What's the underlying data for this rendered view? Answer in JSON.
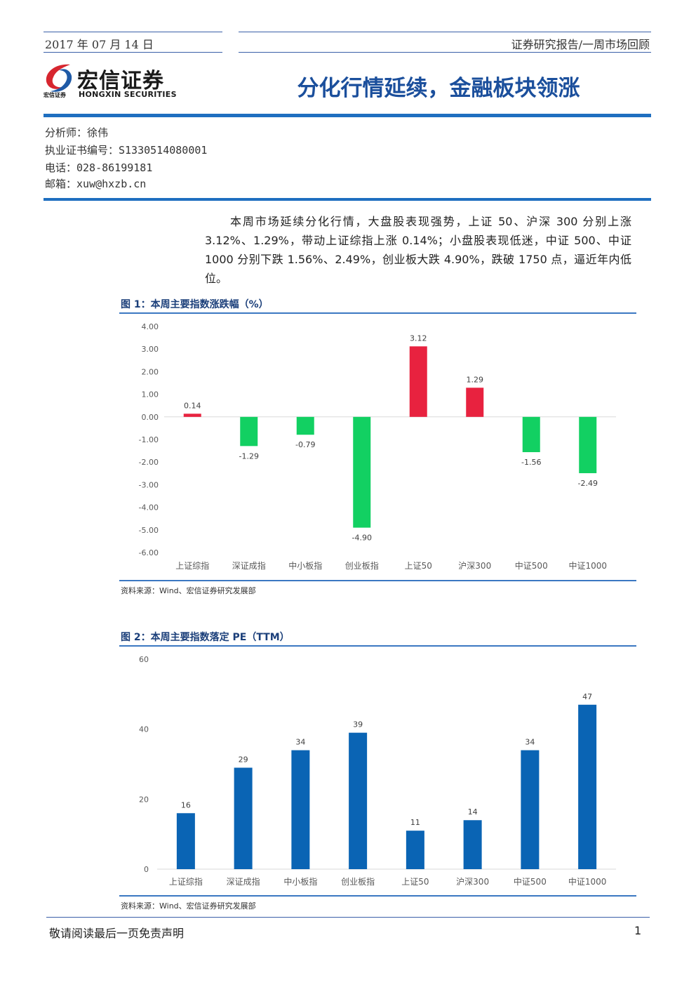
{
  "header": {
    "date": "2017 年 07 月 14 日",
    "category": "证券研究报告/一周市场回顾",
    "title": "分化行情延续，金融板块领涨"
  },
  "logo": {
    "name_cn": "宏信证券",
    "name_en": "HONGXIN SECURITIES",
    "small": "宏信证券",
    "colors": {
      "red": "#d7262f",
      "blue": "#1f5aa6"
    }
  },
  "analyst": {
    "name": "分析师：徐伟",
    "cert": "执业证书编号：S1330514080001",
    "phone": "电话：028-86199181",
    "email": "邮箱：xuw@hxzb.cn"
  },
  "summary": "本周市场延续分化行情，大盘股表现强势，上证 50、沪深 300 分别上涨 3.12%、1.29%，带动上证综指上涨 0.14%；小盘股表现低迷，中证 500、中证 1000 分别下跌 1.56%、2.49%，创业板大跌 4.90%，跌破 1750 点，逼近年内低位。",
  "figures": {
    "fig1_title": "图 1：本周主要指数涨跌幅（%）",
    "fig1_source": "资料来源：Wind、宏信证券研究发展部",
    "fig2_title": "图 2：本周主要指数落定 PE（TTM）",
    "fig2_source": "资料来源：Wind、宏信证券研究发展部"
  },
  "chart_data": [
    {
      "type": "bar",
      "categories": [
        "上证综指",
        "深证成指",
        "中小板指",
        "创业板指",
        "上证50",
        "沪深300",
        "中证500",
        "中证1000"
      ],
      "values": [
        0.14,
        -1.29,
        -0.79,
        -4.9,
        3.12,
        1.29,
        -1.56,
        -2.49
      ],
      "value_labels": [
        "0.14",
        "-1.29",
        "-0.79",
        "-4.90",
        "3.12",
        "1.29",
        "-1.56",
        "-2.49"
      ],
      "ylim": [
        -6,
        4
      ],
      "yticks": [
        4,
        3,
        2,
        1,
        0,
        -1,
        -2,
        -3,
        -4,
        -5,
        -6
      ],
      "ytick_labels": [
        "4.00",
        "3.00",
        "2.00",
        "1.00",
        "0.00",
        "-1.00",
        "-2.00",
        "-3.00",
        "-4.00",
        "-5.00",
        "-6.00"
      ],
      "colors": {
        "positive": "#e8223f",
        "negative": "#12d062"
      },
      "grid": false
    },
    {
      "type": "bar",
      "categories": [
        "上证综指",
        "深证成指",
        "中小板指",
        "创业板指",
        "上证50",
        "沪深300",
        "中证500",
        "中证1000"
      ],
      "values": [
        16,
        29,
        34,
        39,
        11,
        14,
        34,
        47
      ],
      "value_labels": [
        "16",
        "29",
        "34",
        "39",
        "11",
        "14",
        "34",
        "47"
      ],
      "ylim": [
        0,
        60
      ],
      "yticks": [
        0,
        20,
        40,
        60
      ],
      "ytick_labels": [
        "0",
        "20",
        "40",
        "60"
      ],
      "colors": {
        "bar": "#0a64b4"
      },
      "grid": false
    }
  ],
  "footer": {
    "disclaimer": "敬请阅读最后一页免责声明",
    "page": "1"
  }
}
